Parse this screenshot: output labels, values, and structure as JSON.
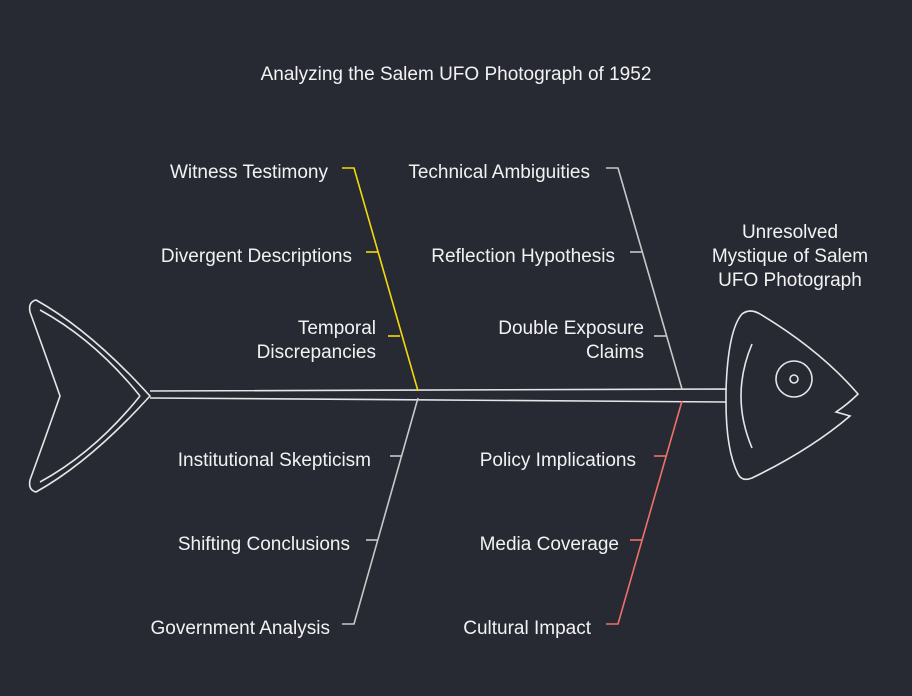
{
  "title": "Analyzing the Salem UFO Photograph of 1952",
  "head_label": [
    "Unresolved",
    "Mystique of Salem",
    "UFO Photograph"
  ],
  "colors": {
    "background": "#272a33",
    "spine": "#e6e6e6",
    "yellow": "#f5d90a",
    "gray": "#c8c8c8",
    "red": "#f0706a"
  },
  "branches": {
    "top_left": {
      "color": "yellow",
      "causes": [
        "Witness Testimony",
        "Divergent Descriptions",
        "Temporal Discrepancies"
      ]
    },
    "top_right": {
      "color": "gray",
      "causes": [
        "Technical Ambiguities",
        "Reflection Hypothesis",
        "Double Exposure Claims"
      ]
    },
    "bottom_left": {
      "color": "gray",
      "causes": [
        "Institutional Skepticism",
        "Shifting Conclusions",
        "Government Analysis"
      ]
    },
    "bottom_right": {
      "color": "red",
      "causes": [
        "Policy Implications",
        "Media Coverage",
        "Cultural Impact"
      ]
    }
  },
  "labels": {
    "tl0": "Witness Testimony",
    "tl1": "Divergent Descriptions",
    "tl2a": "Temporal",
    "tl2b": "Discrepancies",
    "tr0": "Technical Ambiguities",
    "tr1": "Reflection Hypothesis",
    "tr2a": "Double Exposure",
    "tr2b": "Claims",
    "bl0": "Institutional Skepticism",
    "bl1": "Shifting Conclusions",
    "bl2": "Government Analysis",
    "br0": "Policy Implications",
    "br1": "Media Coverage",
    "br2": "Cultural Impact"
  }
}
